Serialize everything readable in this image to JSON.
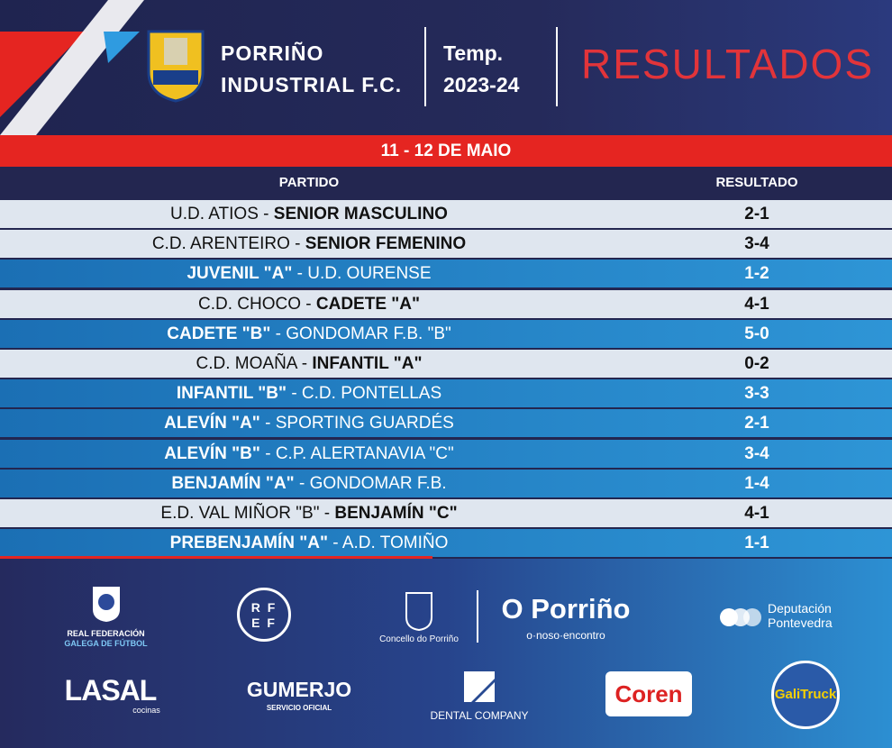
{
  "header": {
    "club_lines": [
      "PORRIÑO",
      "INDUSTRIAL F.C."
    ],
    "season_lines": [
      "Temp.",
      "2023-24"
    ],
    "title": "RESULTADOS"
  },
  "date": "11 - 12 DE MAIO",
  "table": {
    "columns": [
      "PARTIDO",
      "RESULTADO"
    ],
    "separator": "-",
    "rows": [
      {
        "home": "U.D. ATIOS",
        "away": "SENIOR MASCULINO",
        "result": "2-1",
        "highlight": "away"
      },
      {
        "home": "C.D. ARENTEIRO",
        "away": "SENIOR FEMENINO",
        "result": "3-4",
        "highlight": "away"
      },
      {
        "home": "JUVENIL \"A\"",
        "away": "U.D. OURENSE",
        "result": "1-2",
        "highlight": "home"
      },
      {
        "home": "C.D. CHOCO",
        "away": "CADETE \"A\"",
        "result": "4-1",
        "highlight": "away"
      },
      {
        "home": "CADETE \"B\"",
        "away": "GONDOMAR F.B. \"B\"",
        "result": "5-0",
        "highlight": "home"
      },
      {
        "home": "C.D. MOAÑA",
        "away": "INFANTIL \"A\"",
        "result": "0-2",
        "highlight": "away"
      },
      {
        "home": "INFANTIL \"B\"",
        "away": "C.D. PONTELLAS",
        "result": "3-3",
        "highlight": "home"
      },
      {
        "home": "ALEVÍN \"A\"",
        "away": "SPORTING GUARDÉS",
        "result": "2-1",
        "highlight": "home"
      },
      {
        "home": "ALEVÍN \"B\"",
        "away": "C.P. ALERTANAVIA \"C\"",
        "result": "3-4",
        "highlight": "home"
      },
      {
        "home": "BENJAMÍN \"A\"",
        "away": "GONDOMAR F.B.",
        "result": "1-4",
        "highlight": "home"
      },
      {
        "home": "E.D. VAL MIÑOR \"B\"",
        "away": "BENJAMÍN \"C\"",
        "result": "4-1",
        "highlight": "away"
      },
      {
        "home": "PREBENJAMÍN \"A\"",
        "away": "A.D. TOMIÑO",
        "result": "1-1",
        "highlight": "home"
      }
    ]
  },
  "sponsors": {
    "rfgf": [
      "REAL FEDERACIÓN",
      "GALEGA DE FÚTBOL"
    ],
    "rfef": [
      "R F",
      "E F"
    ],
    "concello": "Concello do Porriño",
    "porrino": "O Porriño",
    "porrino_tag": "o·noso·encontro",
    "deputacion": [
      "Deputación",
      "Pontevedra"
    ],
    "lasal": "LASAL",
    "lasal_sub": "cocinas",
    "gumerjo": "GUMERJO",
    "gumerjo_sub": "SERVICIO OFICIAL",
    "dental": "DENTAL COMPANY",
    "coren": "Coren",
    "galitruck": "GaliTruck"
  }
}
